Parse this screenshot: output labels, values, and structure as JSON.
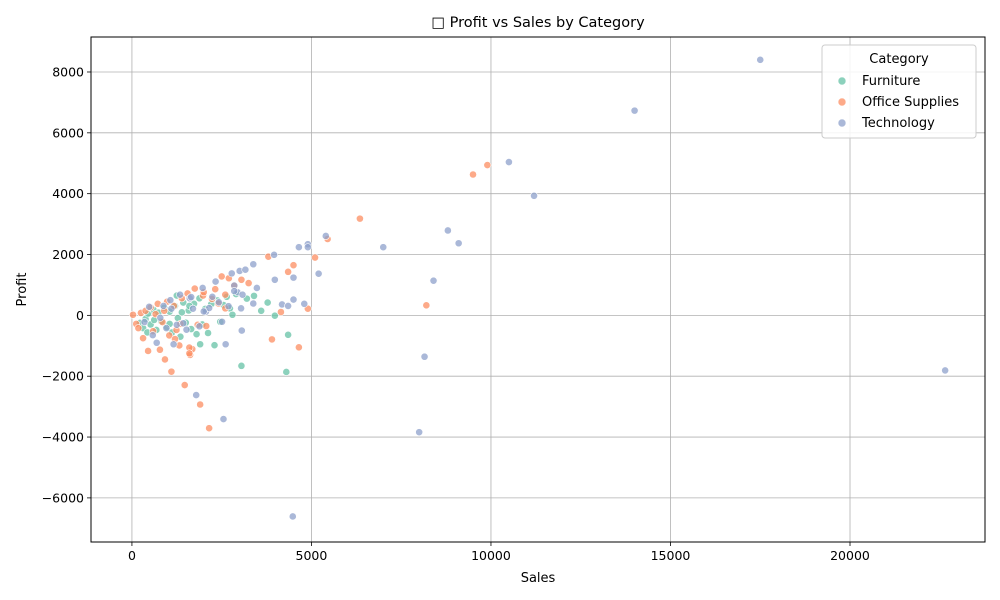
{
  "chart_data": {
    "type": "scatter",
    "title": "□ Profit vs Sales by Category",
    "xlabel": "Sales",
    "ylabel": "Profit",
    "xlim": [
      -1140,
      23760
    ],
    "ylim": [
      -7450,
      9150
    ],
    "xticks": [
      0,
      5000,
      10000,
      15000,
      20000
    ],
    "yticks": [
      -6000,
      -4000,
      -2000,
      0,
      2000,
      4000,
      6000,
      8000
    ],
    "grid": true,
    "legend": {
      "title": "Category",
      "position": "top-right"
    },
    "series": [
      {
        "name": "Furniture",
        "color": "#66c2a5",
        "points": [
          [
            220,
            -250
          ],
          [
            310,
            -420
          ],
          [
            380,
            -120
          ],
          [
            450,
            60
          ],
          [
            520,
            -300
          ],
          [
            600,
            180
          ],
          [
            680,
            -480
          ],
          [
            740,
            90
          ],
          [
            820,
            -200
          ],
          [
            900,
            250
          ],
          [
            970,
            -380
          ],
          [
            1050,
            120
          ],
          [
            1120,
            -560
          ],
          [
            1200,
            310
          ],
          [
            1280,
            -90
          ],
          [
            1350,
            -700
          ],
          [
            1430,
            420
          ],
          [
            1500,
            -240
          ],
          [
            1580,
            160
          ],
          [
            1650,
            -450
          ],
          [
            1730,
            380
          ],
          [
            1800,
            -620
          ],
          [
            1880,
            560
          ],
          [
            1960,
            -300
          ],
          [
            2040,
            210
          ],
          [
            2120,
            -580
          ],
          [
            2210,
            370
          ],
          [
            2300,
            -980
          ],
          [
            2380,
            490
          ],
          [
            2460,
            -210
          ],
          [
            2550,
            340
          ],
          [
            2640,
            610
          ],
          [
            2730,
            230
          ],
          [
            2800,
            20
          ],
          [
            2900,
            700
          ],
          [
            3050,
            -1660
          ],
          [
            3200,
            550
          ],
          [
            3400,
            640
          ],
          [
            3600,
            150
          ],
          [
            3780,
            420
          ],
          [
            3980,
            -10
          ],
          [
            4350,
            -640
          ],
          [
            4300,
            -1860
          ],
          [
            1390,
            100
          ],
          [
            1600,
            310
          ],
          [
            1900,
            -950
          ],
          [
            1050,
            -280
          ],
          [
            620,
            -150
          ],
          [
            1250,
            650
          ],
          [
            430,
            -560
          ]
        ]
      },
      {
        "name": "Office Supplies",
        "color": "#fc8d62",
        "points": [
          [
            30,
            20
          ],
          [
            120,
            -280
          ],
          [
            180,
            -420
          ],
          [
            250,
            80
          ],
          [
            310,
            -750
          ],
          [
            380,
            150
          ],
          [
            450,
            -1170
          ],
          [
            520,
            260
          ],
          [
            590,
            -520
          ],
          [
            660,
            40
          ],
          [
            720,
            380
          ],
          [
            780,
            -1130
          ],
          [
            850,
            -220
          ],
          [
            920,
            -1450
          ],
          [
            980,
            450
          ],
          [
            1040,
            -660
          ],
          [
            1100,
            -1850
          ],
          [
            1170,
            310
          ],
          [
            1240,
            -480
          ],
          [
            1320,
            -990
          ],
          [
            1390,
            560
          ],
          [
            1470,
            -2290
          ],
          [
            1550,
            720
          ],
          [
            1620,
            -1300
          ],
          [
            1680,
            -1110
          ],
          [
            1750,
            880
          ],
          [
            1830,
            -310
          ],
          [
            1900,
            -2930
          ],
          [
            1980,
            650
          ],
          [
            2070,
            -350
          ],
          [
            2150,
            -3710
          ],
          [
            2230,
            540
          ],
          [
            2320,
            860
          ],
          [
            2410,
            390
          ],
          [
            2500,
            1280
          ],
          [
            2600,
            680
          ],
          [
            2700,
            1220
          ],
          [
            2850,
            970
          ],
          [
            3050,
            1170
          ],
          [
            3250,
            1060
          ],
          [
            3800,
            1930
          ],
          [
            3900,
            -790
          ],
          [
            4150,
            110
          ],
          [
            4350,
            1430
          ],
          [
            4500,
            1650
          ],
          [
            4650,
            -1050
          ],
          [
            4900,
            220
          ],
          [
            5100,
            1900
          ],
          [
            5450,
            2510
          ],
          [
            6350,
            3180
          ],
          [
            8200,
            330
          ],
          [
            9500,
            4630
          ],
          [
            9900,
            4940
          ],
          [
            1600,
            -1060
          ],
          [
            1600,
            -1250
          ],
          [
            1350,
            -280
          ],
          [
            900,
            150
          ],
          [
            2000,
            760
          ],
          [
            2600,
            230
          ],
          [
            1200,
            -780
          ]
        ]
      },
      {
        "name": "Technology",
        "color": "#8da0cb",
        "points": [
          [
            350,
            -220
          ],
          [
            480,
            280
          ],
          [
            580,
            -650
          ],
          [
            690,
            -900
          ],
          [
            790,
            -80
          ],
          [
            880,
            310
          ],
          [
            960,
            -420
          ],
          [
            1070,
            500
          ],
          [
            1160,
            -950
          ],
          [
            1250,
            -310
          ],
          [
            1340,
            680
          ],
          [
            1430,
            -260
          ],
          [
            1520,
            -470
          ],
          [
            1610,
            560
          ],
          [
            1700,
            220
          ],
          [
            1790,
            -2620
          ],
          [
            1880,
            -360
          ],
          [
            1970,
            900
          ],
          [
            2060,
            120
          ],
          [
            2150,
            240
          ],
          [
            2240,
            610
          ],
          [
            2330,
            1110
          ],
          [
            2420,
            430
          ],
          [
            2510,
            -210
          ],
          [
            2550,
            -3410
          ],
          [
            2610,
            -950
          ],
          [
            2690,
            300
          ],
          [
            2780,
            1380
          ],
          [
            2850,
            980
          ],
          [
            2940,
            760
          ],
          [
            3000,
            1460
          ],
          [
            3040,
            230
          ],
          [
            3060,
            -500
          ],
          [
            3080,
            680
          ],
          [
            3160,
            1500
          ],
          [
            3380,
            1680
          ],
          [
            3480,
            900
          ],
          [
            3960,
            1990
          ],
          [
            3980,
            1170
          ],
          [
            4180,
            360
          ],
          [
            4350,
            310
          ],
          [
            4500,
            1240
          ],
          [
            4480,
            -6610
          ],
          [
            4650,
            2240
          ],
          [
            4800,
            380
          ],
          [
            4900,
            2340
          ],
          [
            5200,
            1370
          ],
          [
            5400,
            2610
          ],
          [
            7000,
            2240
          ],
          [
            8000,
            -3840
          ],
          [
            8150,
            -1360
          ],
          [
            8400,
            1140
          ],
          [
            8800,
            2790
          ],
          [
            9100,
            2370
          ],
          [
            10500,
            5040
          ],
          [
            11200,
            3930
          ],
          [
            14000,
            6730
          ],
          [
            17500,
            8400
          ],
          [
            22650,
            -1810
          ],
          [
            1100,
            220
          ],
          [
            2850,
            800
          ],
          [
            3380,
            390
          ],
          [
            4500,
            520
          ],
          [
            4900,
            2240
          ],
          [
            1650,
            600
          ],
          [
            2000,
            130
          ]
        ]
      }
    ]
  }
}
